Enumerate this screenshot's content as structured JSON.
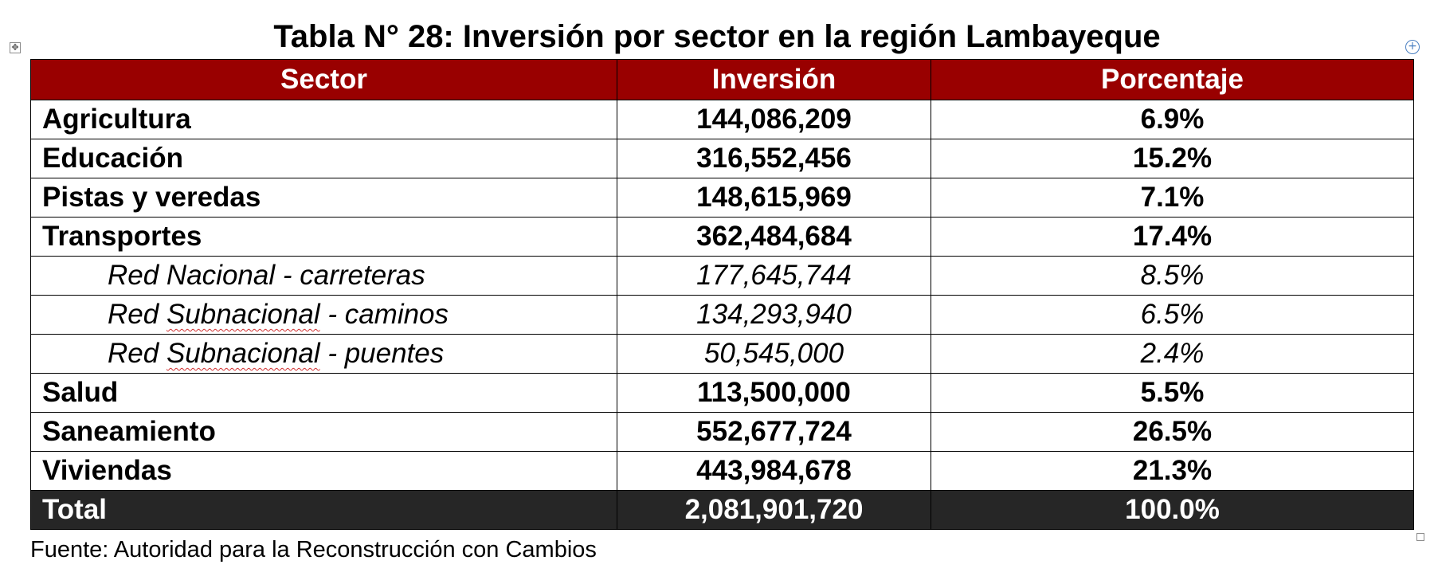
{
  "title": "Tabla N° 28: Inversión por sector en la región Lambayeque",
  "table": {
    "headers": [
      "Sector",
      "Inversión",
      "Porcentaje"
    ],
    "rows": [
      {
        "sector_pre": "Agricultura",
        "sector_word": "",
        "sector_post": "",
        "investment": "144,086,209",
        "percent": "6.9%",
        "level": "main"
      },
      {
        "sector_pre": "Educación",
        "sector_word": "",
        "sector_post": "",
        "investment": "316,552,456",
        "percent": "15.2%",
        "level": "main"
      },
      {
        "sector_pre": "Pistas y veredas",
        "sector_word": "",
        "sector_post": "",
        "investment": "148,615,969",
        "percent": "7.1%",
        "level": "main"
      },
      {
        "sector_pre": "Transportes",
        "sector_word": "",
        "sector_post": "",
        "investment": "362,484,684",
        "percent": "17.4%",
        "level": "main"
      },
      {
        "sector_pre": "Red Nacional - carreteras",
        "sector_word": "",
        "sector_post": "",
        "investment": "177,645,744",
        "percent": "8.5%",
        "level": "sub"
      },
      {
        "sector_pre": "Red ",
        "sector_word": "Subnacional",
        "sector_post": " - caminos",
        "investment": "134,293,940",
        "percent": "6.5%",
        "level": "sub"
      },
      {
        "sector_pre": "Red ",
        "sector_word": "Subnacional",
        "sector_post": " - puentes",
        "investment": "50,545,000",
        "percent": "2.4%",
        "level": "sub"
      },
      {
        "sector_pre": "Salud",
        "sector_word": "",
        "sector_post": "",
        "investment": "113,500,000",
        "percent": "5.5%",
        "level": "main"
      },
      {
        "sector_pre": "Saneamiento",
        "sector_word": "",
        "sector_post": "",
        "investment": "552,677,724",
        "percent": "26.5%",
        "level": "main"
      },
      {
        "sector_pre": "Viviendas",
        "sector_word": "",
        "sector_post": "",
        "investment": "443,984,678",
        "percent": "21.3%",
        "level": "main"
      }
    ],
    "total": {
      "label": "Total",
      "investment": "2,081,901,720",
      "percent": "100.0%"
    }
  },
  "source": "Fuente: Autoridad para la Reconstrucción con Cambios",
  "colors": {
    "header_bg": "#990000",
    "total_bg": "#262626",
    "spellcheck_underline": "#d03030"
  },
  "icons": {
    "table_move_handle": "move-cross-icon",
    "add_column_handle": "plus-circle-icon",
    "table_resize_handle": "resize-square-icon"
  }
}
